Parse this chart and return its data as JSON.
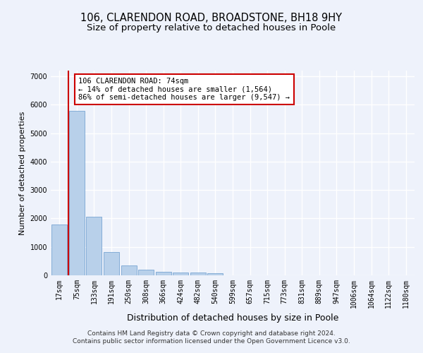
{
  "title": "106, CLARENDON ROAD, BROADSTONE, BH18 9HY",
  "subtitle": "Size of property relative to detached houses in Poole",
  "xlabel": "Distribution of detached houses by size in Poole",
  "ylabel": "Number of detached properties",
  "footer_line1": "Contains HM Land Registry data © Crown copyright and database right 2024.",
  "footer_line2": "Contains public sector information licensed under the Open Government Licence v3.0.",
  "categories": [
    "17sqm",
    "75sqm",
    "133sqm",
    "191sqm",
    "250sqm",
    "308sqm",
    "366sqm",
    "424sqm",
    "482sqm",
    "540sqm",
    "599sqm",
    "657sqm",
    "715sqm",
    "773sqm",
    "831sqm",
    "889sqm",
    "947sqm",
    "1006sqm",
    "1064sqm",
    "1122sqm",
    "1180sqm"
  ],
  "values": [
    1780,
    5780,
    2060,
    820,
    350,
    200,
    120,
    110,
    100,
    80,
    0,
    0,
    0,
    0,
    0,
    0,
    0,
    0,
    0,
    0,
    0
  ],
  "bar_color": "#b8d0ea",
  "bar_edge_color": "#6699cc",
  "vline_color": "#cc0000",
  "annotation_text": "106 CLARENDON ROAD: 74sqm\n← 14% of detached houses are smaller (1,564)\n86% of semi-detached houses are larger (9,547) →",
  "annotation_box_color": "#ffffff",
  "annotation_box_edge": "#cc0000",
  "ylim": [
    0,
    7200
  ],
  "yticks": [
    0,
    1000,
    2000,
    3000,
    4000,
    5000,
    6000,
    7000
  ],
  "background_color": "#eef2fb",
  "plot_bg_color": "#eef2fb",
  "grid_color": "#ffffff",
  "title_fontsize": 10.5,
  "subtitle_fontsize": 9.5,
  "xlabel_fontsize": 9,
  "ylabel_fontsize": 8,
  "tick_fontsize": 7,
  "footer_fontsize": 6.5
}
